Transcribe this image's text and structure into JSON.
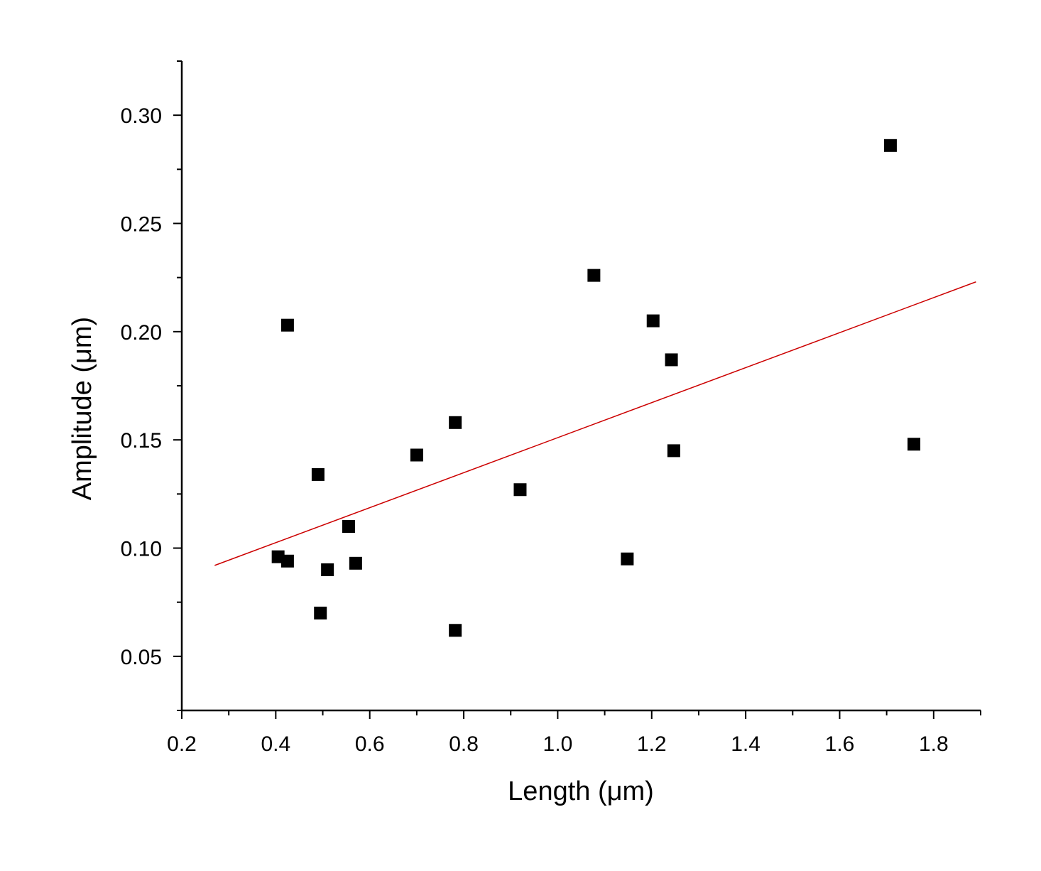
{
  "chart_data": {
    "type": "scatter",
    "title": "",
    "xlabel": "Length (μm)",
    "ylabel": "Amplitude (μm)",
    "xlim": [
      0.2,
      1.9
    ],
    "ylim": [
      0.025,
      0.325
    ],
    "x_ticks": [
      0.2,
      0.4,
      0.6,
      0.8,
      1.0,
      1.2,
      1.4,
      1.6,
      1.8
    ],
    "x_tick_labels": [
      "0.2",
      "0.4",
      "0.6",
      "0.8",
      "1.0",
      "1.2",
      "1.4",
      "1.6",
      "1.8"
    ],
    "x_minor_ticks": [
      0.3,
      0.5,
      0.7,
      0.9,
      1.1,
      1.3,
      1.5,
      1.7,
      1.9
    ],
    "y_ticks": [
      0.05,
      0.1,
      0.15,
      0.2,
      0.25,
      0.3
    ],
    "y_tick_labels": [
      "0.05",
      "0.10",
      "0.15",
      "0.20",
      "0.25",
      "0.30"
    ],
    "y_minor_ticks": [
      0.025,
      0.075,
      0.125,
      0.175,
      0.225,
      0.275,
      0.325
    ],
    "grid": false,
    "legend": "none",
    "colors": {
      "points": "#000000",
      "fit_line": "#cc0000",
      "axes": "#000000"
    },
    "series": [
      {
        "type": "scatter",
        "marker": "square",
        "points": [
          {
            "x": 0.405,
            "y": 0.096
          },
          {
            "x": 0.425,
            "y": 0.094
          },
          {
            "x": 0.425,
            "y": 0.203
          },
          {
            "x": 0.49,
            "y": 0.134
          },
          {
            "x": 0.495,
            "y": 0.07
          },
          {
            "x": 0.51,
            "y": 0.09
          },
          {
            "x": 0.555,
            "y": 0.11
          },
          {
            "x": 0.57,
            "y": 0.093
          },
          {
            "x": 0.7,
            "y": 0.143
          },
          {
            "x": 0.782,
            "y": 0.158
          },
          {
            "x": 0.782,
            "y": 0.062
          },
          {
            "x": 0.92,
            "y": 0.127
          },
          {
            "x": 1.077,
            "y": 0.226
          },
          {
            "x": 1.148,
            "y": 0.095
          },
          {
            "x": 1.203,
            "y": 0.205
          },
          {
            "x": 1.242,
            "y": 0.187
          },
          {
            "x": 1.247,
            "y": 0.145
          },
          {
            "x": 1.708,
            "y": 0.286
          },
          {
            "x": 1.758,
            "y": 0.148
          }
        ]
      },
      {
        "type": "line",
        "points": [
          {
            "x": 0.27,
            "y": 0.092
          },
          {
            "x": 1.89,
            "y": 0.223
          }
        ]
      }
    ]
  }
}
